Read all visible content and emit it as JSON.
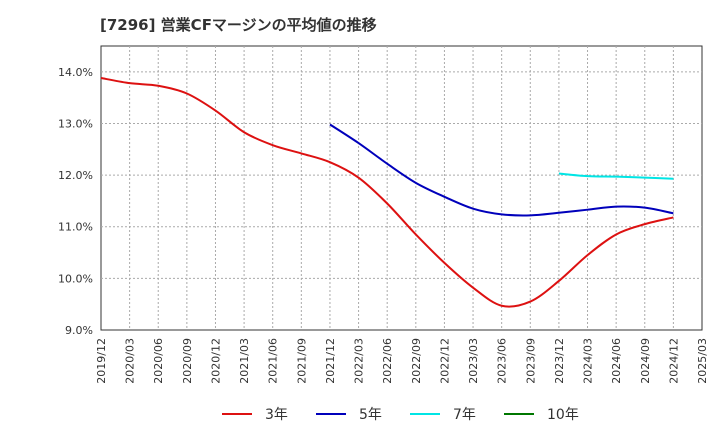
{
  "chart_data": {
    "type": "line",
    "title": "[7296]  営業CFマージンの平均値の推移",
    "xlabel": "",
    "ylabel": "",
    "x_ticks": [
      "2019/12",
      "2020/03",
      "2020/06",
      "2020/09",
      "2020/12",
      "2021/03",
      "2021/06",
      "2021/09",
      "2021/12",
      "2022/03",
      "2022/06",
      "2022/09",
      "2022/12",
      "2023/03",
      "2023/06",
      "2023/09",
      "2023/12",
      "2024/03",
      "2024/06",
      "2024/09",
      "2024/12",
      "2025/03"
    ],
    "y_ticks": [
      "9.0%",
      "10.0%",
      "11.0%",
      "12.0%",
      "13.0%",
      "14.0%"
    ],
    "ylim": [
      9.0,
      14.5
    ],
    "grid": true,
    "legend_position": "bottom",
    "series": [
      {
        "name": "3年",
        "color": "#dd1111",
        "x": [
          "2019/12",
          "2020/03",
          "2020/06",
          "2020/09",
          "2020/12",
          "2021/03",
          "2021/06",
          "2021/09",
          "2021/12",
          "2022/03",
          "2022/06",
          "2022/09",
          "2022/12",
          "2023/03",
          "2023/06",
          "2023/09",
          "2023/12",
          "2024/03",
          "2024/06",
          "2024/09",
          "2024/12"
        ],
        "values": [
          13.88,
          13.78,
          13.73,
          13.58,
          13.25,
          12.83,
          12.58,
          12.42,
          12.25,
          11.95,
          11.45,
          10.85,
          10.3,
          9.82,
          9.47,
          9.55,
          9.95,
          10.45,
          10.85,
          11.05,
          11.18
        ]
      },
      {
        "name": "5年",
        "color": "#0000bb",
        "x": [
          "2021/12",
          "2022/03",
          "2022/06",
          "2022/09",
          "2022/12",
          "2023/03",
          "2023/06",
          "2023/09",
          "2023/12",
          "2024/03",
          "2024/06",
          "2024/09",
          "2024/12"
        ],
        "values": [
          12.98,
          12.62,
          12.22,
          11.85,
          11.58,
          11.35,
          11.24,
          11.22,
          11.27,
          11.33,
          11.39,
          11.37,
          11.26
        ]
      },
      {
        "name": "7年",
        "color": "#00e5e5",
        "x": [
          "2023/12",
          "2024/03",
          "2024/06",
          "2024/09",
          "2024/12"
        ],
        "values": [
          12.03,
          11.98,
          11.97,
          11.95,
          11.93
        ]
      },
      {
        "name": "10年",
        "color": "#007700",
        "x": [],
        "values": []
      }
    ]
  }
}
